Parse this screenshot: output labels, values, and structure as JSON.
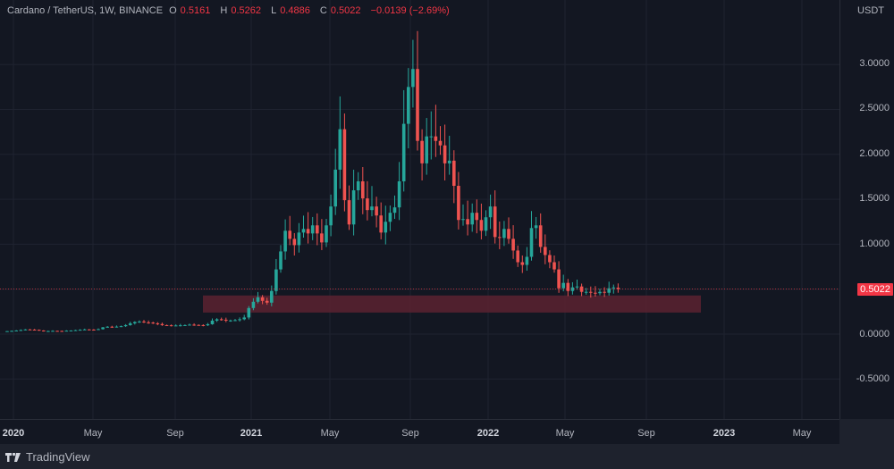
{
  "legend": {
    "symbol": "Cardano / TetherUS, 1W, BINANCE",
    "open_label": "O",
    "open": "0.5161",
    "high_label": "H",
    "high": "0.5262",
    "low_label": "L",
    "low": "0.4886",
    "close_label": "C",
    "close": "0.5022",
    "change": "−0.0139 (−2.69%)"
  },
  "price_scale": {
    "unit": "USDT",
    "ticks": [
      "3.0000",
      "2.5000",
      "2.0000",
      "1.5000",
      "1.0000",
      "0.0000",
      "-0.5000"
    ],
    "current_price": "0.5022"
  },
  "time_scale": {
    "ticks": [
      {
        "label": "2020",
        "year": true
      },
      {
        "label": "May",
        "year": false
      },
      {
        "label": "Sep",
        "year": false
      },
      {
        "label": "2021",
        "year": true
      },
      {
        "label": "May",
        "year": false
      },
      {
        "label": "Sep",
        "year": false
      },
      {
        "label": "2022",
        "year": true
      },
      {
        "label": "May",
        "year": false
      },
      {
        "label": "Sep",
        "year": false
      },
      {
        "label": "2023",
        "year": true
      },
      {
        "label": "May",
        "year": false
      }
    ]
  },
  "footer": {
    "brand": "TradingView"
  },
  "colors": {
    "up": "#26a69a",
    "down": "#ef5350",
    "zone": "#5c2230",
    "grid": "#1f2330",
    "price_line": "#f23645"
  },
  "chart_data": {
    "type": "candlestick",
    "title": "Cardano / TetherUS, 1W, BINANCE",
    "xlabel": "",
    "ylabel": "USDT",
    "ylim": [
      -0.7,
      3.7
    ],
    "yticks": [
      3.0,
      2.5,
      2.0,
      1.5,
      1.0,
      0.5,
      0.0,
      -0.5
    ],
    "xticks": [
      "2020",
      "May",
      "Sep",
      "2021",
      "May",
      "Sep",
      "2022",
      "May",
      "Sep",
      "2023",
      "May"
    ],
    "grid": true,
    "support_zone": {
      "from": "2020-10",
      "to": "2022-12",
      "low": 0.24,
      "high": 0.43
    },
    "last": {
      "open": 0.5161,
      "high": 0.5262,
      "low": 0.4886,
      "close": 0.5022
    },
    "weekly_close_approx": [
      0.033,
      0.036,
      0.04,
      0.045,
      0.052,
      0.05,
      0.048,
      0.04,
      0.032,
      0.034,
      0.036,
      0.035,
      0.034,
      0.038,
      0.04,
      0.044,
      0.048,
      0.052,
      0.05,
      0.048,
      0.055,
      0.075,
      0.082,
      0.08,
      0.083,
      0.088,
      0.1,
      0.12,
      0.135,
      0.14,
      0.13,
      0.128,
      0.12,
      0.112,
      0.1,
      0.098,
      0.095,
      0.096,
      0.098,
      0.1,
      0.105,
      0.102,
      0.1,
      0.098,
      0.11,
      0.15,
      0.165,
      0.16,
      0.15,
      0.152,
      0.155,
      0.165,
      0.185,
      0.29,
      0.36,
      0.41,
      0.37,
      0.35,
      0.48,
      0.72,
      0.92,
      1.15,
      1.06,
      0.99,
      1.13,
      1.17,
      1.12,
      1.21,
      1.12,
      1.02,
      1.21,
      1.42,
      1.83,
      2.28,
      1.49,
      1.22,
      1.6,
      1.7,
      1.51,
      1.38,
      1.42,
      1.32,
      1.13,
      1.25,
      1.35,
      1.41,
      1.7,
      2.34,
      2.75,
      2.95,
      2.15,
      1.9,
      2.2,
      2.2,
      2.15,
      2.1,
      1.9,
      1.93,
      1.65,
      1.27,
      1.28,
      1.22,
      1.35,
      1.27,
      1.15,
      1.3,
      1.42,
      1.08,
      1.07,
      1.17,
      1.06,
      0.93,
      0.8,
      0.77,
      0.86,
      1.18,
      1.21,
      0.97,
      0.88,
      0.8,
      0.72,
      0.51,
      0.57,
      0.48,
      0.52,
      0.53,
      0.47,
      0.47,
      0.46,
      0.455,
      0.47,
      0.46,
      0.51,
      0.52,
      0.5022
    ]
  }
}
